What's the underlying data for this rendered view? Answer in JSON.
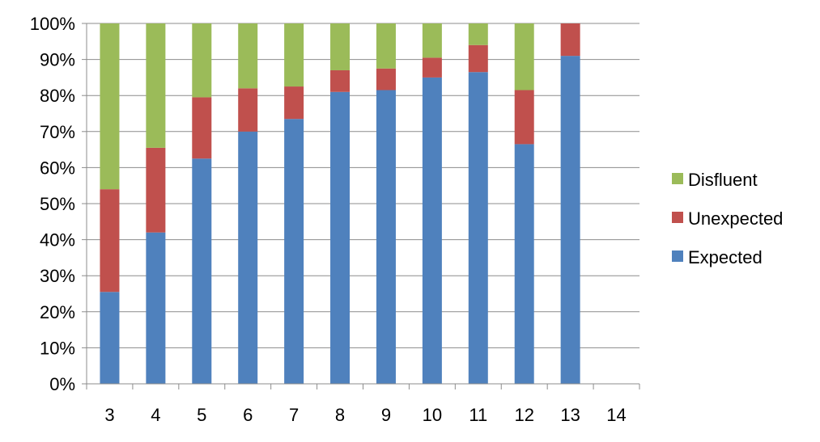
{
  "chart_data": {
    "type": "bar",
    "stacked": "percent",
    "categories": [
      "3",
      "4",
      "5",
      "6",
      "7",
      "8",
      "9",
      "10",
      "11",
      "12",
      "13",
      "14"
    ],
    "series": [
      {
        "name": "Expected",
        "color": "#4F81BD",
        "values": [
          25.5,
          42.0,
          62.5,
          70.0,
          73.5,
          81.0,
          81.5,
          85.0,
          86.5,
          66.5,
          91.0,
          0
        ]
      },
      {
        "name": "Unexpected",
        "color": "#C0504D",
        "values": [
          28.5,
          23.5,
          17.0,
          12.0,
          9.0,
          6.0,
          6.0,
          5.5,
          7.5,
          15.0,
          9.0,
          0
        ]
      },
      {
        "name": "Disfluent",
        "color": "#9BBB59",
        "values": [
          46.0,
          34.5,
          20.5,
          18.0,
          17.5,
          13.0,
          12.5,
          9.5,
          6.0,
          18.5,
          0.0,
          0
        ]
      }
    ],
    "yticks": [
      "0%",
      "10%",
      "20%",
      "30%",
      "40%",
      "50%",
      "60%",
      "70%",
      "80%",
      "90%",
      "100%"
    ],
    "ylim": [
      0,
      100
    ],
    "grid": true,
    "legend_position": "right",
    "legend_order": [
      "Disfluent",
      "Unexpected",
      "Expected"
    ],
    "title": "",
    "xlabel": "",
    "ylabel": ""
  }
}
